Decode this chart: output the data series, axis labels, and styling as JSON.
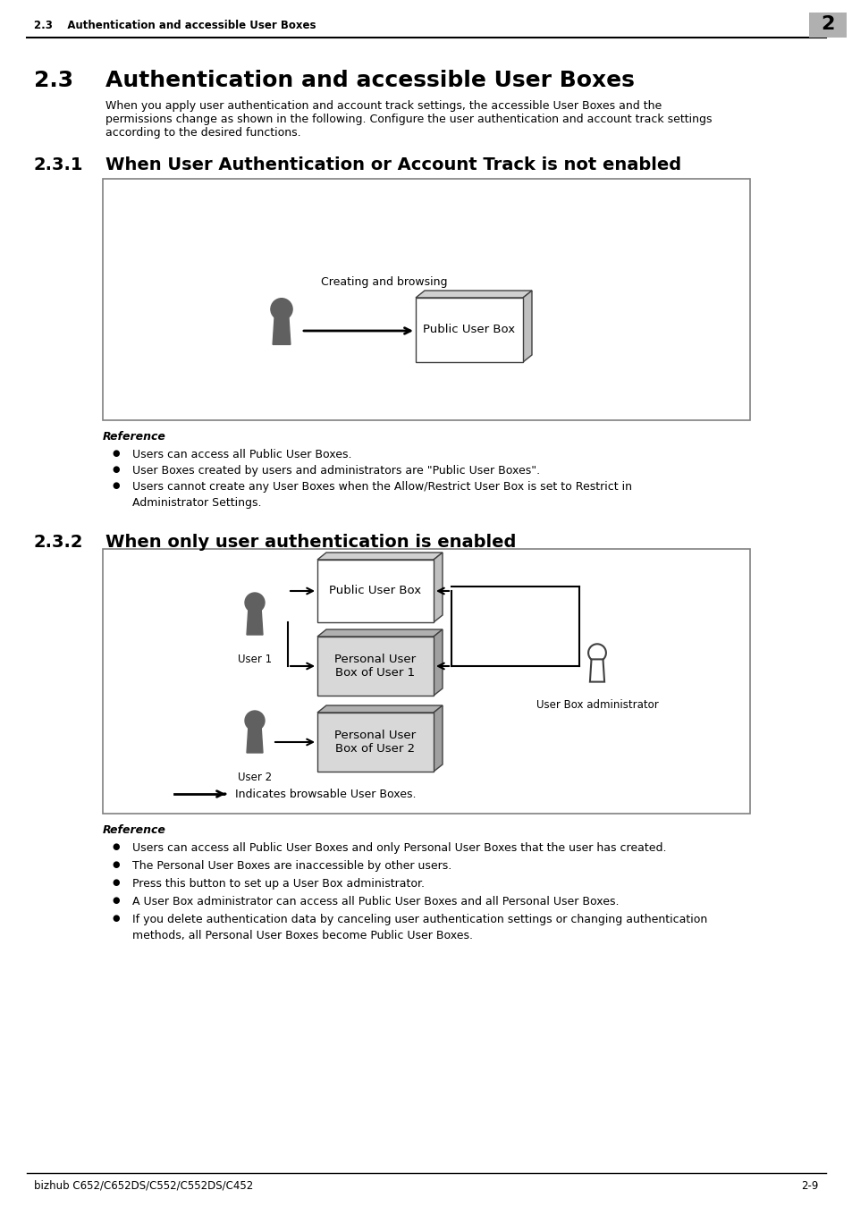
{
  "page_title_left": "2.3    Authentication and accessible User Boxes",
  "page_number": "2",
  "section_number": "2.3",
  "section_title": "Authentication and accessible User Boxes",
  "section_intro_line1": "When you apply user authentication and account track settings, the accessible User Boxes and the",
  "section_intro_line2": "permissions change as shown in the following. Configure the user authentication and account track settings",
  "section_intro_line3": "according to the desired functions.",
  "subsection1_number": "2.3.1",
  "subsection1_title": "When User Authentication or Account Track is not enabled",
  "subsection2_number": "2.3.2",
  "subsection2_title": "When only user authentication is enabled",
  "diag1_label": "Creating and browsing",
  "diag1_box_label": "Public User Box",
  "diag1_ref": "Reference",
  "diag1_bullet1": "Users can access all Public User Boxes.",
  "diag1_bullet2": "User Boxes created by users and administrators are \"Public User Boxes\".",
  "diag1_bullet3a": "Users cannot create any User Boxes when the Allow/Restrict User Box is set to Restrict in",
  "diag1_bullet3b": "Administrator Settings.",
  "diag2_ref": "Reference",
  "diag2_bullet1": "Users can access all Public User Boxes and only Personal User Boxes that the user has created.",
  "diag2_bullet2": "The Personal User Boxes are inaccessible by other users.",
  "diag2_bullet3": "Press this button to set up a User Box administrator.",
  "diag2_bullet4": "A User Box administrator can access all Public User Boxes and all Personal User Boxes.",
  "diag2_bullet5a": "If you delete authentication data by canceling user authentication settings or changing authentication",
  "diag2_bullet5b": "methods, all Personal User Boxes become Public User Boxes.",
  "diag2_user1_label": "User 1",
  "diag2_user2_label": "User 2",
  "diag2_admin_label": "User Box administrator",
  "diag2_box1_label": "Public User Box",
  "diag2_box2_label": "Personal User\nBox of User 1",
  "diag2_box3_label": "Personal User\nBox of User 2",
  "diag2_legend": "Indicates browsable User Boxes.",
  "footer_left": "bizhub C652/C652DS/C552/C552DS/C452",
  "footer_right": "2-9",
  "bg_color": "#ffffff",
  "person_color_dark": "#606060",
  "person_color_light": "#c8c8c8",
  "box_fill_light": "#e8e8e8",
  "box_fill_dark": "#b0b0b0"
}
